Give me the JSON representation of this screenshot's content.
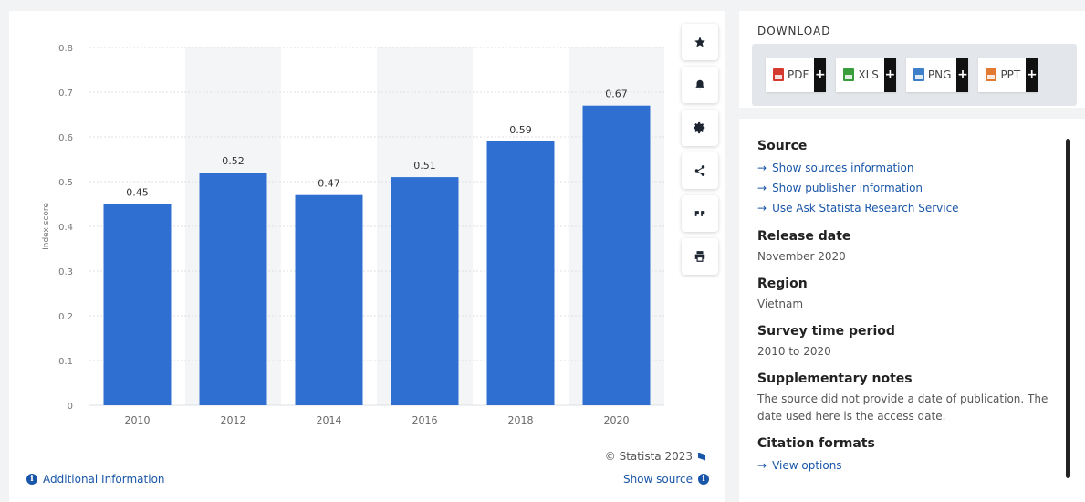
{
  "chart_data": {
    "type": "bar",
    "categories": [
      "2010",
      "2012",
      "2014",
      "2016",
      "2018",
      "2020"
    ],
    "values": [
      0.45,
      0.52,
      0.47,
      0.51,
      0.59,
      0.67
    ],
    "data_labels": [
      "0.45",
      "0.52",
      "0.47",
      "0.51",
      "0.59",
      "0.67"
    ],
    "ylabel": "Index score",
    "xlabel": "",
    "title": "",
    "ylim": [
      0,
      0.8
    ],
    "yticks": [
      "0",
      "0.1",
      "0.2",
      "0.3",
      "0.4",
      "0.5",
      "0.6",
      "0.7",
      "0.8"
    ],
    "grid": true,
    "legend": "none",
    "bar_color": "#2f6fd1"
  },
  "toolbar": {
    "buttons": [
      {
        "name": "star-icon"
      },
      {
        "name": "bell-icon"
      },
      {
        "name": "gear-icon"
      },
      {
        "name": "share-icon"
      },
      {
        "name": "quote-icon"
      },
      {
        "name": "print-icon"
      }
    ]
  },
  "footer": {
    "credit": "© Statista 2023",
    "show_source": "Show source",
    "additional_info": "Additional Information"
  },
  "download": {
    "title": "DOWNLOAD",
    "formats": [
      {
        "label": "PDF",
        "icon": "pdf-icon"
      },
      {
        "label": "XLS",
        "icon": "xls-icon"
      },
      {
        "label": "PNG",
        "icon": "png-icon"
      },
      {
        "label": "PPT",
        "icon": "ppt-icon"
      }
    ],
    "plus": "+"
  },
  "info": {
    "source_title": "Source",
    "source_links": [
      "Show sources information",
      "Show publisher information",
      "Use Ask Statista Research Service"
    ],
    "release_title": "Release date",
    "release_value": "November 2020",
    "region_title": "Region",
    "region_value": "Vietnam",
    "period_title": "Survey time period",
    "period_value": "2010 to 2020",
    "notes_title": "Supplementary notes",
    "notes_value": "The source did not provide a date of publication. The date used here is the access date.",
    "citation_title": "Citation formats",
    "citation_link": "View options",
    "arrow": "→"
  }
}
